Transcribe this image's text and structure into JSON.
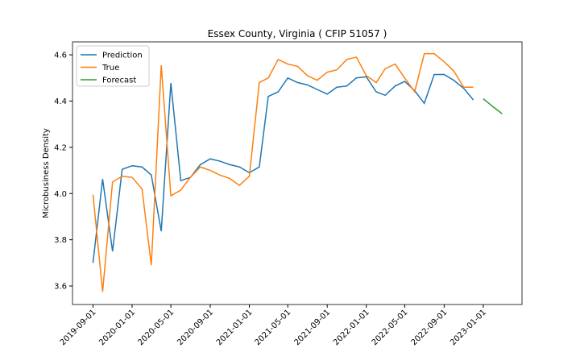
{
  "chart_data": {
    "type": "line",
    "title": "Essex County, Virginia ( CFIP 51057 )",
    "y_label": "Microbusiness Density",
    "x": [
      "2019-09-01",
      "2019-10-01",
      "2019-11-01",
      "2019-12-01",
      "2020-01-01",
      "2020-02-01",
      "2020-03-01",
      "2020-04-01",
      "2020-05-01",
      "2020-06-01",
      "2020-07-01",
      "2020-08-01",
      "2020-09-01",
      "2020-10-01",
      "2020-11-01",
      "2020-12-01",
      "2021-01-01",
      "2021-02-01",
      "2021-03-01",
      "2021-04-01",
      "2021-05-01",
      "2021-06-01",
      "2021-07-01",
      "2021-08-01",
      "2021-09-01",
      "2021-10-01",
      "2021-11-01",
      "2021-12-01",
      "2022-01-01",
      "2022-02-01",
      "2022-03-01",
      "2022-04-01",
      "2022-05-01",
      "2022-06-01",
      "2022-07-01",
      "2022-08-01",
      "2022-09-01",
      "2022-10-01",
      "2022-11-01",
      "2022-12-01",
      "2023-01-01",
      "2023-02-01",
      "2023-03-01"
    ],
    "series": [
      {
        "name": "Prediction",
        "color": "#1f77b4",
        "values": [
          3.7,
          4.063,
          3.75,
          4.105,
          4.12,
          4.115,
          4.08,
          3.837,
          4.478,
          4.056,
          4.07,
          4.125,
          4.15,
          4.14,
          4.125,
          4.115,
          4.09,
          4.115,
          4.42,
          4.44,
          4.5,
          4.48,
          4.47,
          4.45,
          4.43,
          4.46,
          4.465,
          4.5,
          4.505,
          4.44,
          4.425,
          4.465,
          4.485,
          4.445,
          4.39,
          4.515,
          4.515,
          4.49,
          4.455,
          4.405,
          null,
          null,
          null
        ]
      },
      {
        "name": "True",
        "color": "#ff7f0e",
        "values": [
          3.995,
          3.575,
          4.05,
          4.075,
          4.07,
          4.02,
          3.69,
          4.555,
          3.99,
          4.015,
          4.07,
          4.115,
          4.1,
          4.08,
          4.065,
          4.035,
          4.075,
          4.48,
          4.5,
          4.58,
          4.56,
          4.55,
          4.51,
          4.49,
          4.525,
          4.535,
          4.58,
          4.59,
          4.51,
          4.48,
          4.54,
          4.56,
          4.5,
          4.44,
          4.605,
          4.605,
          4.57,
          4.53,
          4.46,
          4.46,
          null,
          null,
          null
        ]
      },
      {
        "name": "Forecast",
        "color": "#2ca02c",
        "values": [
          null,
          null,
          null,
          null,
          null,
          null,
          null,
          null,
          null,
          null,
          null,
          null,
          null,
          null,
          null,
          null,
          null,
          null,
          null,
          null,
          null,
          null,
          null,
          null,
          null,
          null,
          null,
          null,
          null,
          null,
          null,
          null,
          null,
          null,
          null,
          null,
          null,
          null,
          null,
          null,
          4.41,
          4.375,
          4.345
        ]
      }
    ],
    "xlim": [
      "2019-06-29",
      "2023-05-02"
    ],
    "xticks": [
      "2019-09-01",
      "2020-01-01",
      "2020-05-01",
      "2020-09-01",
      "2021-01-01",
      "2021-05-01",
      "2021-09-01",
      "2022-01-01",
      "2022-05-01",
      "2022-09-01",
      "2023-01-01"
    ],
    "ylim": [
      3.52,
      4.656
    ],
    "yticks": [
      3.6,
      3.8,
      {
        "value": 4,
        "label": "4.0"
      },
      4.2,
      4.4,
      4.6
    ],
    "legend": "upper left"
  }
}
